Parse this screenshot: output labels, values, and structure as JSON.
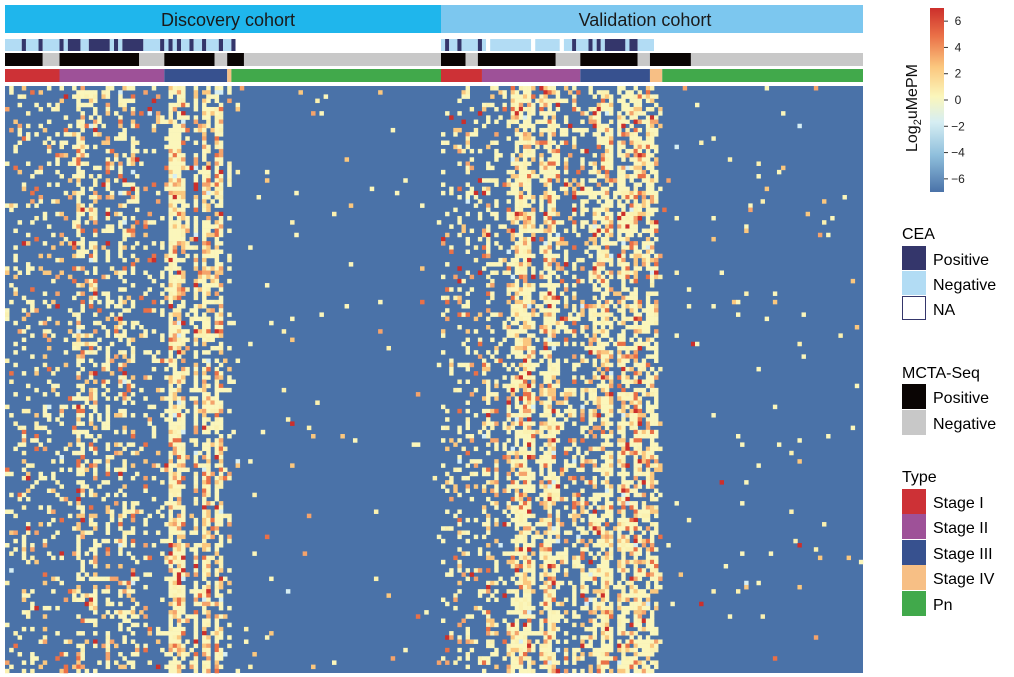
{
  "chart_data": {
    "type": "heatmap",
    "colorbar": {
      "label_prefix": "Log",
      "label_sub": "2",
      "label_suffix": "uMePM",
      "ticks": [
        6,
        4,
        2,
        0,
        -2,
        -4,
        -6
      ],
      "tick_labels": [
        "6",
        "4",
        "2",
        "0",
        "−2",
        "−4",
        "−6"
      ],
      "range": [
        -7,
        7
      ],
      "colors": [
        "#4a72a8",
        "#8fbfdc",
        "#d6eef3",
        "#fbf6bb",
        "#fbc77e",
        "#ea7047",
        "#cc2f2b"
      ]
    },
    "cohorts": [
      {
        "label": "Discovery cohort",
        "color": "#1fb6ec",
        "samples": 104
      },
      {
        "label": "Validation cohort",
        "color": "#7cc7ef",
        "samples": 103
      }
    ],
    "annotation_tracks": [
      "CEA",
      "MCTA-Seq",
      "Type"
    ],
    "type_groups": {
      "discovery": [
        {
          "category": "Stage I",
          "n": 13
        },
        {
          "category": "Stage II",
          "n": 25
        },
        {
          "category": "Stage III",
          "n": 15
        },
        {
          "category": "Stage IV",
          "n": 1
        },
        {
          "category": "Pn",
          "n": 50
        }
      ],
      "validation": [
        {
          "category": "Stage I",
          "n": 10
        },
        {
          "category": "Stage II",
          "n": 24
        },
        {
          "category": "Stage III",
          "n": 17
        },
        {
          "category": "Stage IV",
          "n": 3
        },
        {
          "category": "Pn",
          "n": 49
        }
      ]
    },
    "mcta_segments": {
      "discovery": [
        [
          0,
          "Positive"
        ],
        [
          9,
          "Negative"
        ],
        [
          13,
          "Positive"
        ],
        [
          32,
          "Negative"
        ],
        [
          38,
          "Positive"
        ],
        [
          50,
          "Negative"
        ],
        [
          53,
          "Positive"
        ],
        [
          57,
          "Negative"
        ]
      ],
      "validation": [
        [
          0,
          "Positive"
        ],
        [
          6,
          "Negative"
        ],
        [
          9,
          "Positive"
        ],
        [
          28,
          "Negative"
        ],
        [
          34,
          "Positive"
        ],
        [
          48,
          "Negative"
        ],
        [
          51,
          "Positive"
        ],
        [
          61,
          "Negative"
        ]
      ]
    },
    "cea_segments": {
      "discovery": [
        [
          0,
          "Negative"
        ],
        [
          4,
          "Positive"
        ],
        [
          5,
          "Negative"
        ],
        [
          8,
          "Positive"
        ],
        [
          9,
          "Negative"
        ],
        [
          13,
          "Positive"
        ],
        [
          14,
          "Negative"
        ],
        [
          15,
          "Positive"
        ],
        [
          18,
          "Negative"
        ],
        [
          20,
          "Positive"
        ],
        [
          25,
          "Negative"
        ],
        [
          26,
          "Positive"
        ],
        [
          27,
          "Negative"
        ],
        [
          28,
          "Positive"
        ],
        [
          33,
          "Negative"
        ],
        [
          37,
          "Positive"
        ],
        [
          38,
          "Negative"
        ],
        [
          39,
          "Positive"
        ],
        [
          40,
          "Negative"
        ],
        [
          41,
          "Positive"
        ],
        [
          42,
          "Negative"
        ],
        [
          44,
          "Positive"
        ],
        [
          45,
          "Negative"
        ],
        [
          47,
          "Positive"
        ],
        [
          48,
          "Negative"
        ],
        [
          51,
          "Positive"
        ],
        [
          52,
          "Negative"
        ],
        [
          54,
          "Positive"
        ],
        [
          55,
          "NA"
        ]
      ],
      "validation": [
        [
          0,
          "Negative"
        ],
        [
          1,
          "Positive"
        ],
        [
          2,
          "Negative"
        ],
        [
          4,
          "Positive"
        ],
        [
          5,
          "Negative"
        ],
        [
          9,
          "Positive"
        ],
        [
          10,
          "Negative"
        ],
        [
          11,
          "NA"
        ],
        [
          12,
          "Negative"
        ],
        [
          22,
          "NA"
        ],
        [
          23,
          "Negative"
        ],
        [
          29,
          "NA"
        ],
        [
          30,
          "Negative"
        ],
        [
          32,
          "Positive"
        ],
        [
          33,
          "Negative"
        ],
        [
          36,
          "Positive"
        ],
        [
          37,
          "Negative"
        ],
        [
          38,
          "Positive"
        ],
        [
          39,
          "Negative"
        ],
        [
          40,
          "Positive"
        ],
        [
          45,
          "Negative"
        ],
        [
          46,
          "Positive"
        ],
        [
          48,
          "Negative"
        ],
        [
          52,
          "NA"
        ]
      ]
    },
    "markers": 140,
    "hot_columns": {
      "discovery": [
        [
          17,
          0.62
        ],
        [
          18,
          0.55
        ],
        [
          21,
          0.5
        ],
        [
          24,
          0.55
        ],
        [
          27,
          0.52
        ],
        [
          30,
          0.45
        ],
        [
          39,
          0.95
        ],
        [
          40,
          0.8
        ],
        [
          41,
          0.85
        ],
        [
          42,
          0.7
        ],
        [
          45,
          0.8
        ],
        [
          47,
          0.9
        ],
        [
          48,
          0.75
        ],
        [
          50,
          0.85
        ],
        [
          51,
          0.7
        ],
        [
          20,
          0.45
        ],
        [
          28,
          0.45
        ]
      ],
      "validation": [
        [
          4,
          0.42
        ],
        [
          6,
          0.4
        ],
        [
          11,
          0.5
        ],
        [
          13,
          0.45
        ],
        [
          16,
          0.45
        ],
        [
          17,
          0.55
        ],
        [
          18,
          0.8
        ],
        [
          19,
          0.8
        ],
        [
          20,
          0.92
        ],
        [
          21,
          0.85
        ],
        [
          22,
          0.6
        ],
        [
          24,
          0.55
        ],
        [
          25,
          0.7
        ],
        [
          26,
          0.95
        ],
        [
          27,
          0.65
        ],
        [
          28,
          0.55
        ],
        [
          30,
          0.5
        ],
        [
          32,
          0.5
        ],
        [
          34,
          0.55
        ],
        [
          36,
          0.45
        ],
        [
          37,
          0.6
        ],
        [
          38,
          0.55
        ],
        [
          39,
          0.7
        ],
        [
          40,
          0.88
        ],
        [
          41,
          0.6
        ],
        [
          43,
          0.7
        ],
        [
          44,
          0.9
        ],
        [
          45,
          0.55
        ],
        [
          46,
          0.5
        ],
        [
          47,
          0.85
        ],
        [
          48,
          0.6
        ],
        [
          49,
          0.5
        ],
        [
          50,
          0.7
        ],
        [
          51,
          0.65
        ],
        [
          52,
          0.6
        ]
      ]
    },
    "background_log2": -6
  },
  "legends": {
    "cea": {
      "title": "CEA",
      "items": [
        {
          "label": "Positive",
          "color": "#34366b"
        },
        {
          "label": "Negative",
          "color": "#b2dcf4"
        },
        {
          "label": "NA",
          "color": "#ffffff"
        }
      ]
    },
    "mcta": {
      "title": "MCTA-Seq",
      "items": [
        {
          "label": "Positive",
          "color": "#0a0504"
        },
        {
          "label": "Negative",
          "color": "#c8c8c8"
        }
      ]
    },
    "type": {
      "title": "Type",
      "items": [
        {
          "label": "Stage I",
          "color": "#cd3136"
        },
        {
          "label": "Stage II",
          "color": "#9e5198"
        },
        {
          "label": "Stage III",
          "color": "#37518f"
        },
        {
          "label": "Stage IV",
          "color": "#f7bf85"
        },
        {
          "label": "Pn",
          "color": "#41a94b"
        }
      ]
    }
  }
}
